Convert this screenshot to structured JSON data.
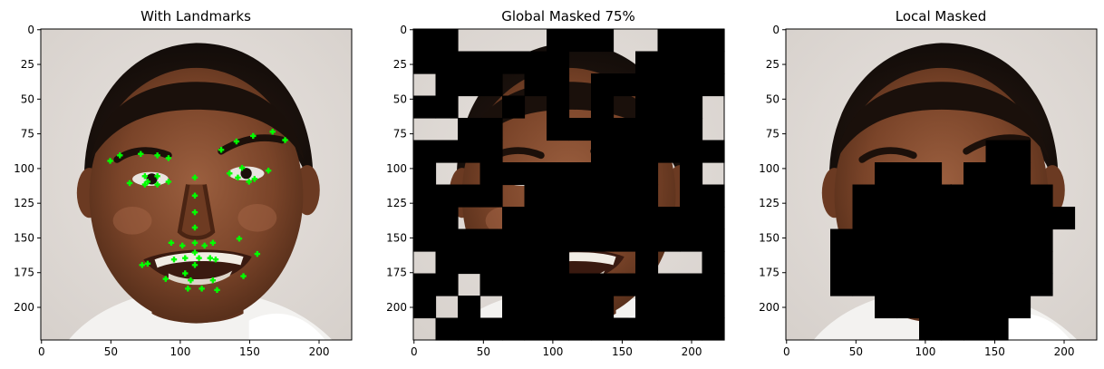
{
  "figure": {
    "panels": [
      {
        "id": "landmarks",
        "title": "With Landmarks",
        "xticks": [
          "0",
          "50",
          "100",
          "150",
          "200"
        ],
        "yticks": [
          "0",
          "25",
          "50",
          "75",
          "100",
          "125",
          "150",
          "175",
          "200"
        ],
        "landmark_color": "#00ff00",
        "landmarks": [
          [
            50,
            95
          ],
          [
            57,
            91
          ],
          [
            64,
            111
          ],
          [
            72,
            90
          ],
          [
            75,
            106
          ],
          [
            75,
            112
          ],
          [
            73,
            170
          ],
          [
            77,
            169
          ],
          [
            77,
            110
          ],
          [
            84,
            91
          ],
          [
            84,
            106
          ],
          [
            84,
            112
          ],
          [
            90,
            180
          ],
          [
            92,
            110
          ],
          [
            92,
            93
          ],
          [
            94,
            154
          ],
          [
            96,
            166
          ],
          [
            102,
            156
          ],
          [
            104,
            165
          ],
          [
            104,
            176
          ],
          [
            106,
            187
          ],
          [
            108,
            181
          ],
          [
            111,
            107
          ],
          [
            111,
            120
          ],
          [
            111,
            132
          ],
          [
            111,
            143
          ],
          [
            111,
            154
          ],
          [
            111,
            161
          ],
          [
            111,
            170
          ],
          [
            114,
            165
          ],
          [
            116,
            187
          ],
          [
            118,
            156
          ],
          [
            122,
            165
          ],
          [
            124,
            181
          ],
          [
            124,
            154
          ],
          [
            126,
            166
          ],
          [
            127,
            188
          ],
          [
            130,
            87
          ],
          [
            136,
            104
          ],
          [
            141,
            81
          ],
          [
            142,
            107
          ],
          [
            143,
            151
          ],
          [
            145,
            100
          ],
          [
            146,
            178
          ],
          [
            150,
            110
          ],
          [
            153,
            77
          ],
          [
            154,
            108
          ],
          [
            156,
            162
          ],
          [
            164,
            102
          ],
          [
            167,
            74
          ],
          [
            176,
            80
          ]
        ]
      },
      {
        "id": "global",
        "title": "Global Masked 75%",
        "xticks": [
          "0",
          "50",
          "100",
          "150",
          "200"
        ],
        "yticks": [
          "0",
          "25",
          "50",
          "75",
          "100",
          "125",
          "150",
          "175",
          "200"
        ],
        "mask_grid_size": 14,
        "mask_grid": [
          "11000011100111",
          "11111110001111",
          "01110110111111",
          "11001010101110",
          "00110011111110",
          "11110000111111",
          "10011111111010",
          "11110111111011",
          "11001111111111",
          "11111111111111",
          "01111110001001",
          "11011111111111",
          "10101111101111",
          "01111111111111"
        ]
      },
      {
        "id": "local",
        "title": "Local Masked",
        "xticks": [
          "0",
          "50",
          "100",
          "150",
          "200"
        ],
        "yticks": [
          "0",
          "25",
          "50",
          "75",
          "100",
          "125",
          "150",
          "175",
          "200"
        ],
        "mask_grid_size": 14,
        "mask_grid": [
          "00000000000000",
          "00000000000000",
          "00000000000000",
          "00000000000000",
          "00000000000000",
          "00000000011000",
          "00001110111000",
          "00011111111100",
          "00011111111110",
          "00111111111100",
          "00111111111100",
          "00111111111100",
          "00001111111000",
          "00000011110000"
        ]
      }
    ]
  }
}
